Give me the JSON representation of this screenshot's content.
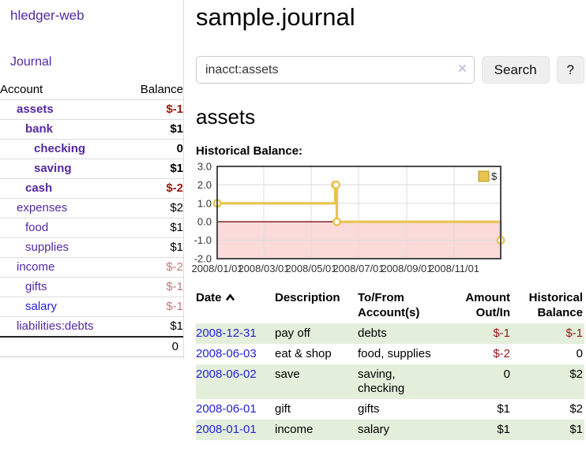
{
  "app": {
    "brand": "hledger-web",
    "nav": {
      "journal": "Journal"
    }
  },
  "sidebar": {
    "header": {
      "account": "Account",
      "balance": "Balance"
    },
    "accounts": [
      {
        "name": "assets",
        "level": 0,
        "bold": true,
        "balance": "$-1",
        "balance_color": "negative"
      },
      {
        "name": "bank",
        "level": 1,
        "bold": true,
        "balance": "$1",
        "balance_color": "normal"
      },
      {
        "name": "checking",
        "level": 2,
        "bold": true,
        "balance": "0",
        "balance_color": "normal"
      },
      {
        "name": "saving",
        "level": 2,
        "bold": true,
        "balance": "$1",
        "balance_color": "normal"
      },
      {
        "name": "cash",
        "level": 1,
        "bold": true,
        "balance": "$-2",
        "balance_color": "negative"
      },
      {
        "name": "expenses",
        "level": 0,
        "bold": false,
        "balance": "$2",
        "balance_color": "normal"
      },
      {
        "name": "food",
        "level": 1,
        "bold": false,
        "balance": "$1",
        "balance_color": "normal"
      },
      {
        "name": "supplies",
        "level": 1,
        "bold": false,
        "balance": "$1",
        "balance_color": "normal"
      },
      {
        "name": "income",
        "level": 0,
        "bold": false,
        "balance": "$-2",
        "balance_color": "negative-muted"
      },
      {
        "name": "gifts",
        "level": 1,
        "bold": false,
        "balance": "$-1",
        "balance_color": "negative-muted"
      },
      {
        "name": "salary",
        "level": 1,
        "bold": false,
        "balance": "$-1",
        "balance_color": "negative-muted",
        "link_color": "blue"
      },
      {
        "name": "liabilities:debts",
        "level": 0,
        "bold": false,
        "balance": "$1",
        "balance_color": "normal"
      }
    ],
    "total": "0"
  },
  "header": {
    "title": "sample.journal"
  },
  "search": {
    "value": "inacct:assets",
    "clear_glyph": "✕",
    "button_label": "Search",
    "help_label": "?"
  },
  "account_page": {
    "title": "assets",
    "chart_label": "Historical Balance:"
  },
  "chart_data": {
    "type": "line",
    "title": "Historical Balance",
    "step": true,
    "series": [
      {
        "name": "$",
        "color": "#e8c44e",
        "points": [
          [
            "2008-01-01",
            1
          ],
          [
            "2008-06-01",
            2
          ],
          [
            "2008-06-02",
            2
          ],
          [
            "2008-06-03",
            0
          ],
          [
            "2008-12-31",
            -1
          ]
        ]
      }
    ],
    "x_ticks": [
      "2008/01/01",
      "2008/03/01",
      "2008/05/01",
      "2008/07/01",
      "2008/09/01",
      "2008/11/01"
    ],
    "y_ticks": [
      3.0,
      2.0,
      1.0,
      0.0,
      -1.0,
      -2.0
    ],
    "xlim": [
      "2008-01-01",
      "2008-12-31"
    ],
    "ylim": [
      -2,
      3
    ],
    "grid": true,
    "negative_fill": "#fbdada",
    "zero_line_color": "#7a0c0c",
    "border_color": "#4a4a4a",
    "legend": {
      "label": "$",
      "position": "top-right"
    }
  },
  "register": {
    "columns": {
      "date": "Date",
      "description": "Description",
      "accounts": "To/From Account(s)",
      "amount": "Amount Out/In",
      "balance": "Historical Balance"
    },
    "sort": {
      "column": "date",
      "direction": "ascending"
    },
    "rows": [
      {
        "date": "2008-12-31",
        "description": "pay off",
        "accounts": "debts",
        "amount": "$-1",
        "amount_neg": true,
        "balance": "$-1",
        "balance_neg": true
      },
      {
        "date": "2008-06-03",
        "description": "eat & shop",
        "accounts": "food, supplies",
        "amount": "$-2",
        "amount_neg": true,
        "balance": "0",
        "balance_neg": false
      },
      {
        "date": "2008-06-02",
        "description": "save",
        "accounts": "saving, checking",
        "amount": "0",
        "amount_neg": false,
        "balance": "$2",
        "balance_neg": false
      },
      {
        "date": "2008-06-01",
        "description": "gift",
        "accounts": "gifts",
        "amount": "$1",
        "amount_neg": false,
        "balance": "$2",
        "balance_neg": false
      },
      {
        "date": "2008-01-01",
        "description": "income",
        "accounts": "salary",
        "amount": "$1",
        "amount_neg": false,
        "balance": "$1",
        "balance_neg": false
      }
    ]
  },
  "colors": {
    "link_purple": "#5428a2",
    "link_blue": "#2422d6",
    "negative_red": "#9d1515",
    "negative_muted": "#bd7b7b",
    "row_stripe_green": "#e3efdb",
    "chart_line_yellow": "#e8c44e",
    "chart_negative_pink": "#fbdada",
    "chart_zero_line": "#7a0c0c"
  }
}
